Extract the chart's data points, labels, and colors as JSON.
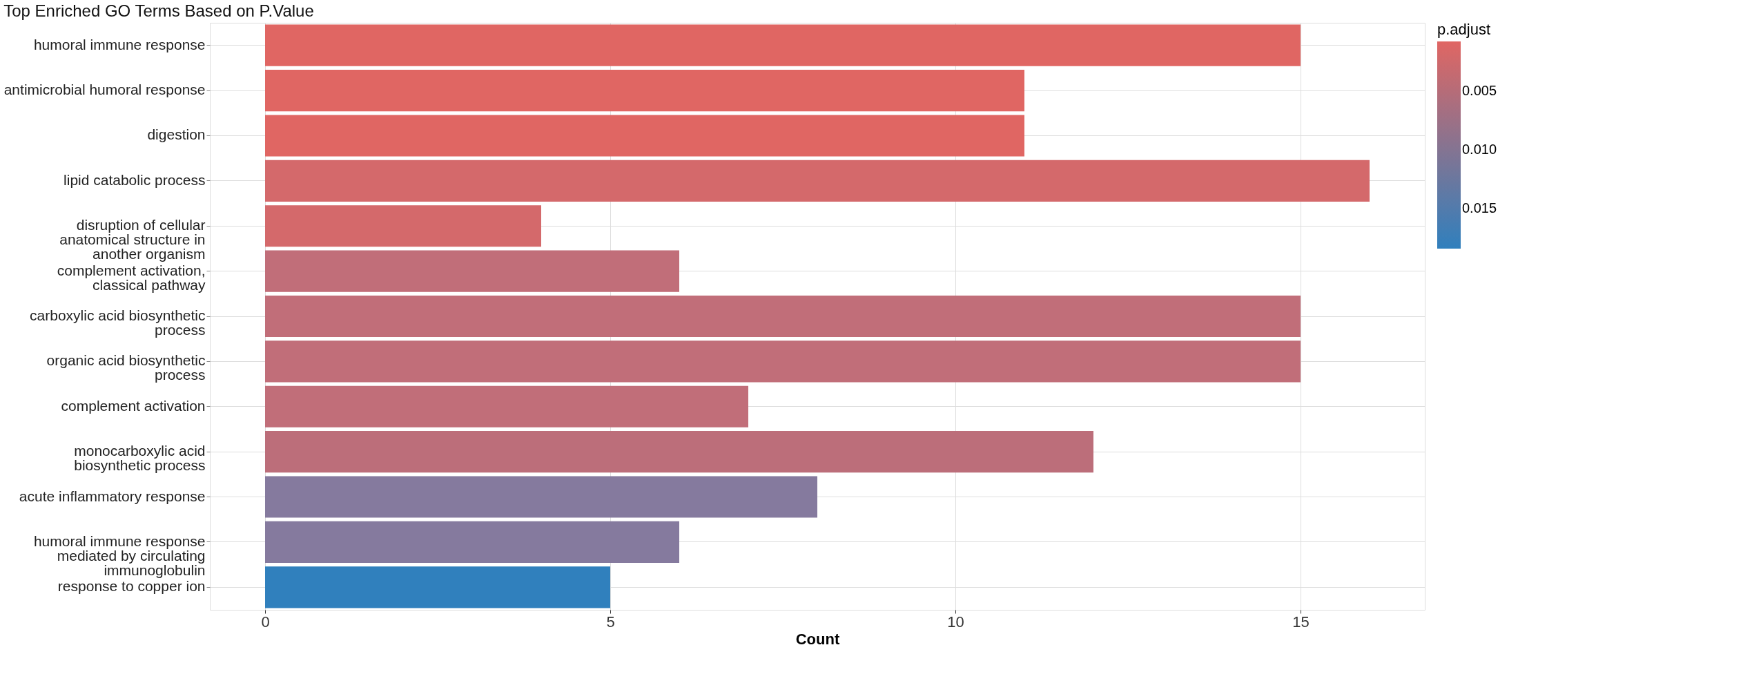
{
  "chart_data": {
    "type": "bar",
    "orientation": "horizontal",
    "title": "Top Enriched GO Terms Based on P.Value",
    "xlabel": "Count",
    "clabel": "p.adjust",
    "categories": [
      "humoral immune response",
      "antimicrobial humoral response",
      "digestion",
      "lipid catabolic process",
      "disruption of cellular\nanatomical structure in\nanother organism",
      "complement activation,\nclassical pathway",
      "carboxylic acid biosynthetic\nprocess",
      "organic acid biosynthetic\nprocess",
      "complement activation",
      "monocarboxylic acid\nbiosynthetic process",
      "acute inflammatory response",
      "humoral immune response\nmediated by circulating\nimmunoglobulin",
      "response to copper ion"
    ],
    "values": [
      15,
      11,
      11,
      16,
      4,
      6,
      15,
      15,
      7,
      12,
      8,
      6,
      5
    ],
    "colors": [
      "#e06663",
      "#e06663",
      "#e06663",
      "#d4696b",
      "#d4696b",
      "#c16e79",
      "#c16e79",
      "#c16e79",
      "#c16e79",
      "#bc6e7a",
      "#857a9e",
      "#857a9e",
      "#3080bd"
    ],
    "xlim": [
      -0.8,
      16.8
    ],
    "xticks": [
      0,
      5,
      10,
      15
    ],
    "grid": true,
    "clim": [
      0.0008,
      0.0184
    ],
    "cticks": [
      0.005,
      {
        "value": 0.01,
        "label": "0.010"
      },
      0.015
    ]
  }
}
